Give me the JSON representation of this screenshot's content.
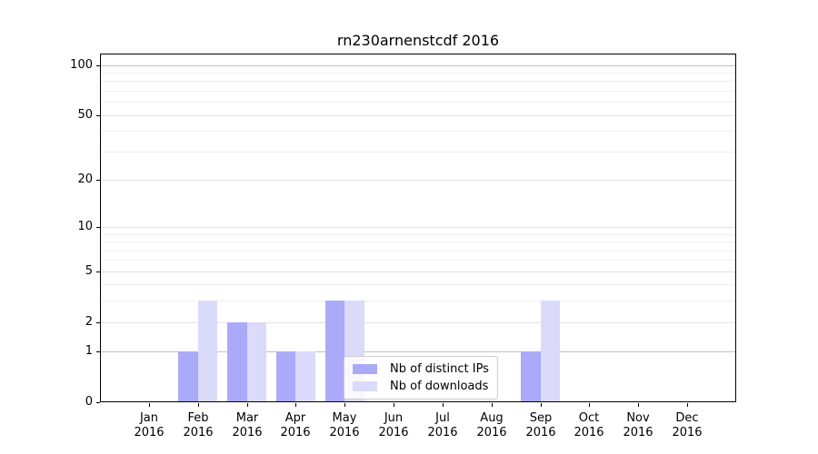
{
  "figure": {
    "title": "rn230arnenstcdf 2016"
  },
  "legend": {
    "items": [
      {
        "label": "Nb of distinct IPs",
        "color": "#abaaf8"
      },
      {
        "label": "Nb of downloads",
        "color": "#dadafb"
      }
    ]
  },
  "colors": {
    "bar_distinct_ips": "#abaaf8",
    "bar_downloads": "#dadafb",
    "grid_major": "#e2e2e2",
    "grid_major_emphasis": "#c2c2c2",
    "grid_minor": "#f0f0f0",
    "axis_line": "#000000",
    "text": "#000000",
    "background": "#ffffff"
  },
  "chart_data": {
    "type": "bar",
    "title": "rn230arnenstcdf 2016",
    "categories": [
      "Jan 2016",
      "Feb 2016",
      "Mar 2016",
      "Apr 2016",
      "May 2016",
      "Jun 2016",
      "Jul 2016",
      "Aug 2016",
      "Sep 2016",
      "Oct 2016",
      "Nov 2016",
      "Dec 2016"
    ],
    "month_labels": [
      "Jan",
      "Feb",
      "Mar",
      "Apr",
      "May",
      "Jun",
      "Jul",
      "Aug",
      "Sep",
      "Oct",
      "Nov",
      "Dec"
    ],
    "year_label": "2016",
    "series": [
      {
        "name": "Nb of distinct IPs",
        "key": "distinct-ips",
        "color": "#abaaf8",
        "values": [
          0,
          1,
          2,
          1,
          3,
          0,
          0,
          0,
          1,
          0,
          0,
          0
        ]
      },
      {
        "name": "Nb of downloads",
        "key": "downloads",
        "color": "#dadafb",
        "values": [
          0,
          3,
          2,
          1,
          3,
          0,
          0,
          0,
          3,
          0,
          0,
          0
        ]
      }
    ],
    "xlabel": "",
    "ylabel": "",
    "yscale": "log1p",
    "ylim": [
      0,
      117
    ],
    "yticks_major": [
      0,
      1,
      2,
      5,
      10,
      20,
      50,
      100
    ],
    "yticks_minor": [
      3,
      4,
      6,
      7,
      8,
      9,
      30,
      40,
      60,
      70,
      80,
      90
    ],
    "grid": "horizontal",
    "legend_location": "lower center",
    "bar_width_fraction": 0.4
  }
}
